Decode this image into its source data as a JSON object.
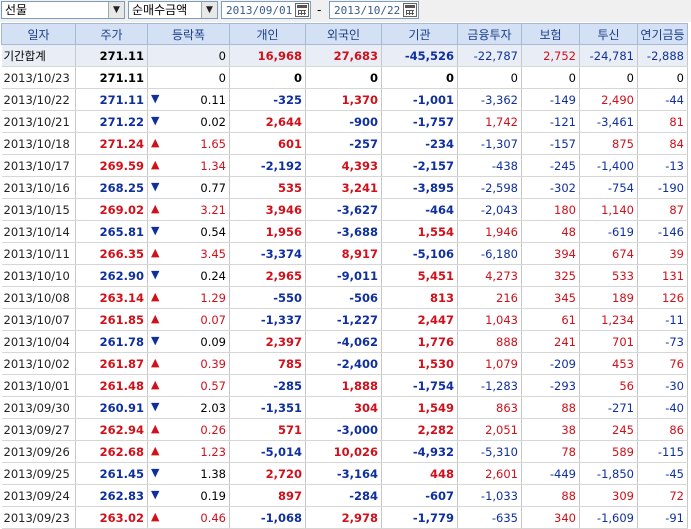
{
  "toolbar": {
    "market_select": "선물",
    "type_select": "순매수금액",
    "date_from": "2013/09/01",
    "date_separator": "-",
    "date_to": "2013/10/22"
  },
  "colors": {
    "up": "#d0101a",
    "down": "#0f2f9c",
    "header_bg": "#d4e1f4"
  },
  "table": {
    "columns": [
      "일자",
      "주가",
      "등락폭",
      "개인",
      "외국인",
      "기관",
      "금융투자",
      "보험",
      "투신",
      "연기금등"
    ],
    "summary": {
      "label": "기간합계",
      "price": "271.11",
      "change": "0",
      "values": [
        "16,968",
        "27,683",
        "-45,526",
        "-22,787",
        "2,752",
        "-24,781",
        "-2,888"
      ]
    },
    "rows": [
      {
        "date": "2013/10/23",
        "price": "271.11",
        "dir": "none",
        "change": "0",
        "values": [
          "0",
          "0",
          "0",
          "0",
          "0",
          "0",
          "0"
        ]
      },
      {
        "date": "2013/10/22",
        "price": "271.11",
        "dir": "down",
        "change": "0.11",
        "values": [
          "-325",
          "1,370",
          "-1,001",
          "-3,362",
          "-149",
          "2,490",
          "-44"
        ]
      },
      {
        "date": "2013/10/21",
        "price": "271.22",
        "dir": "down",
        "change": "0.02",
        "values": [
          "2,644",
          "-900",
          "-1,757",
          "1,742",
          "-121",
          "-3,461",
          "81"
        ]
      },
      {
        "date": "2013/10/18",
        "price": "271.24",
        "dir": "up",
        "change": "1.65",
        "values": [
          "601",
          "-257",
          "-234",
          "-1,307",
          "-157",
          "875",
          "84"
        ]
      },
      {
        "date": "2013/10/17",
        "price": "269.59",
        "dir": "up",
        "change": "1.34",
        "values": [
          "-2,192",
          "4,393",
          "-2,157",
          "-438",
          "-245",
          "-1,400",
          "-13"
        ]
      },
      {
        "date": "2013/10/16",
        "price": "268.25",
        "dir": "down",
        "change": "0.77",
        "values": [
          "535",
          "3,241",
          "-3,895",
          "-2,598",
          "-302",
          "-754",
          "-190"
        ]
      },
      {
        "date": "2013/10/15",
        "price": "269.02",
        "dir": "up",
        "change": "3.21",
        "values": [
          "3,946",
          "-3,627",
          "-464",
          "-2,043",
          "180",
          "1,140",
          "87"
        ]
      },
      {
        "date": "2013/10/14",
        "price": "265.81",
        "dir": "down",
        "change": "0.54",
        "values": [
          "1,956",
          "-3,688",
          "1,554",
          "1,946",
          "48",
          "-619",
          "-146"
        ]
      },
      {
        "date": "2013/10/11",
        "price": "266.35",
        "dir": "up",
        "change": "3.45",
        "values": [
          "-3,374",
          "8,917",
          "-5,106",
          "-6,180",
          "394",
          "674",
          "39"
        ]
      },
      {
        "date": "2013/10/10",
        "price": "262.90",
        "dir": "down",
        "change": "0.24",
        "values": [
          "2,965",
          "-9,011",
          "5,451",
          "4,273",
          "325",
          "533",
          "131"
        ]
      },
      {
        "date": "2013/10/08",
        "price": "263.14",
        "dir": "up",
        "change": "1.29",
        "values": [
          "-550",
          "-506",
          "813",
          "216",
          "345",
          "189",
          "126"
        ]
      },
      {
        "date": "2013/10/07",
        "price": "261.85",
        "dir": "up",
        "change": "0.07",
        "values": [
          "-1,337",
          "-1,227",
          "2,447",
          "1,043",
          "61",
          "1,234",
          "-11"
        ]
      },
      {
        "date": "2013/10/04",
        "price": "261.78",
        "dir": "down",
        "change": "0.09",
        "values": [
          "2,397",
          "-4,062",
          "1,776",
          "888",
          "241",
          "701",
          "-73"
        ]
      },
      {
        "date": "2013/10/02",
        "price": "261.87",
        "dir": "up",
        "change": "0.39",
        "values": [
          "785",
          "-2,400",
          "1,530",
          "1,079",
          "-209",
          "453",
          "76"
        ]
      },
      {
        "date": "2013/10/01",
        "price": "261.48",
        "dir": "up",
        "change": "0.57",
        "values": [
          "-285",
          "1,888",
          "-1,754",
          "-1,283",
          "-293",
          "56",
          "-30"
        ]
      },
      {
        "date": "2013/09/30",
        "price": "260.91",
        "dir": "down",
        "change": "2.03",
        "values": [
          "-1,351",
          "304",
          "1,549",
          "863",
          "88",
          "-271",
          "-40"
        ]
      },
      {
        "date": "2013/09/27",
        "price": "262.94",
        "dir": "up",
        "change": "0.26",
        "values": [
          "571",
          "-3,000",
          "2,282",
          "2,051",
          "38",
          "245",
          "86"
        ]
      },
      {
        "date": "2013/09/26",
        "price": "262.68",
        "dir": "up",
        "change": "1.23",
        "values": [
          "-5,014",
          "10,026",
          "-4,932",
          "-5,310",
          "78",
          "589",
          "-115"
        ]
      },
      {
        "date": "2013/09/25",
        "price": "261.45",
        "dir": "down",
        "change": "1.38",
        "values": [
          "2,720",
          "-3,164",
          "448",
          "2,601",
          "-449",
          "-1,850",
          "-45"
        ]
      },
      {
        "date": "2013/09/24",
        "price": "262.83",
        "dir": "down",
        "change": "0.19",
        "values": [
          "897",
          "-284",
          "-607",
          "-1,033",
          "88",
          "309",
          "72"
        ]
      },
      {
        "date": "2013/09/23",
        "price": "263.02",
        "dir": "up",
        "change": "0.46",
        "values": [
          "-1,068",
          "2,978",
          "-1,779",
          "-635",
          "340",
          "-1,609",
          "-91"
        ]
      }
    ]
  }
}
